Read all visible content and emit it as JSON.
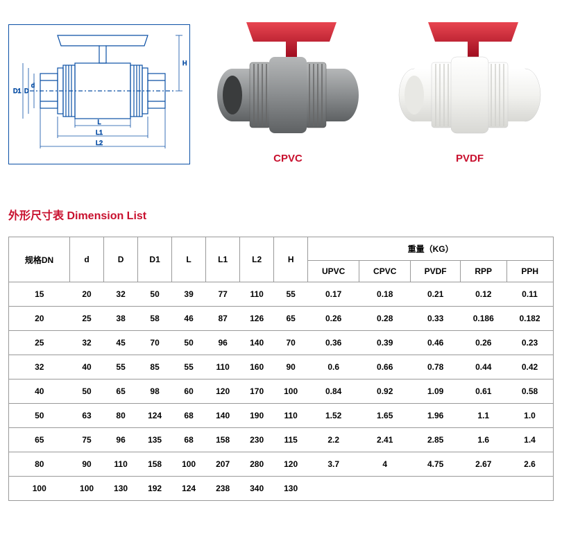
{
  "diagram": {
    "line_color": "#0a4fa5",
    "labels": {
      "H": "H",
      "D1": "D1",
      "D": "D",
      "d": "d",
      "L": "L",
      "L1": "L1",
      "L2": "L2"
    }
  },
  "products": [
    {
      "key": "cpvc",
      "label": "CPVC",
      "body_color": "#8a8d8f",
      "handle_color": "#c8102e"
    },
    {
      "key": "pvdf",
      "label": "PVDF",
      "body_color": "#f5f5f2",
      "handle_color": "#c8102e"
    }
  ],
  "section_title": "外形尺寸表 Dimension List",
  "table": {
    "header_main": [
      "规格DN",
      "d",
      "D",
      "D1",
      "L",
      "L1",
      "L2",
      "H"
    ],
    "weight_header": "重量（KG）",
    "weight_cols": [
      "UPVC",
      "CPVC",
      "PVDF",
      "RPP",
      "PPH"
    ],
    "rows": [
      [
        "15",
        "20",
        "32",
        "50",
        "39",
        "77",
        "110",
        "55",
        "0.17",
        "0.18",
        "0.21",
        "0.12",
        "0.11"
      ],
      [
        "20",
        "25",
        "38",
        "58",
        "46",
        "87",
        "126",
        "65",
        "0.26",
        "0.28",
        "0.33",
        "0.186",
        "0.182"
      ],
      [
        "25",
        "32",
        "45",
        "70",
        "50",
        "96",
        "140",
        "70",
        "0.36",
        "0.39",
        "0.46",
        "0.26",
        "0.23"
      ],
      [
        "32",
        "40",
        "55",
        "85",
        "55",
        "110",
        "160",
        "90",
        "0.6",
        "0.66",
        "0.78",
        "0.44",
        "0.42"
      ],
      [
        "40",
        "50",
        "65",
        "98",
        "60",
        "120",
        "170",
        "100",
        "0.84",
        "0.92",
        "1.09",
        "0.61",
        "0.58"
      ],
      [
        "50",
        "63",
        "80",
        "124",
        "68",
        "140",
        "190",
        "110",
        "1.52",
        "1.65",
        "1.96",
        "1.1",
        "1.0"
      ],
      [
        "65",
        "75",
        "96",
        "135",
        "68",
        "158",
        "230",
        "115",
        "2.2",
        "2.41",
        "2.85",
        "1.6",
        "1.4"
      ],
      [
        "80",
        "90",
        "110",
        "158",
        "100",
        "207",
        "280",
        "120",
        "3.7",
        "4",
        "4.75",
        "2.67",
        "2.6"
      ],
      [
        "100",
        "100",
        "130",
        "192",
        "124",
        "238",
        "340",
        "130",
        "",
        "",
        "",
        "",
        ""
      ]
    ]
  },
  "colors": {
    "accent": "#c8102e",
    "border": "#999999",
    "diagram_border": "#0a4fa5"
  }
}
